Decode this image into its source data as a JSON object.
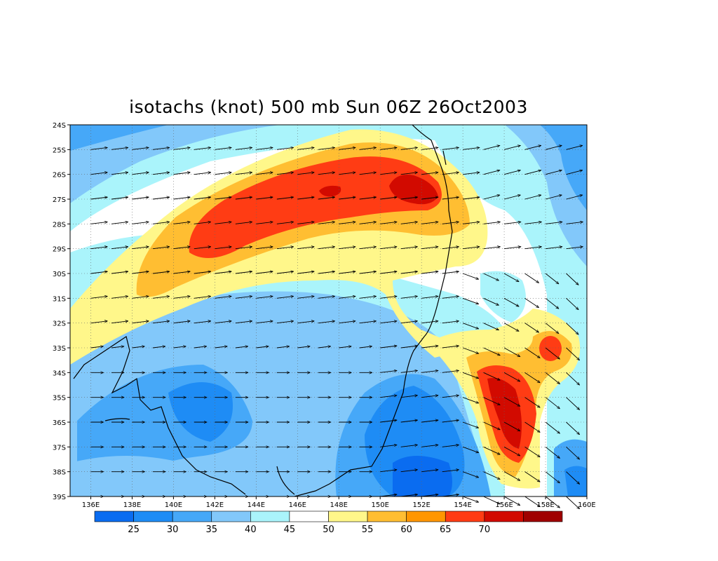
{
  "title": "isotachs (knot) 500 mb Sun 06Z 26Oct2003",
  "map": {
    "lon_range": [
      135,
      160
    ],
    "lat_range": [
      -39,
      -24
    ],
    "lon_ticks": [
      "136E",
      "138E",
      "140E",
      "142E",
      "144E",
      "146E",
      "148E",
      "150E",
      "152E",
      "154E",
      "156E",
      "158E",
      "160E"
    ],
    "lat_ticks": [
      "24S",
      "25S",
      "26S",
      "27S",
      "28S",
      "29S",
      "30S",
      "31S",
      "32S",
      "33S",
      "34S",
      "35S",
      "36S",
      "37S",
      "38S",
      "39S"
    ],
    "grid": true
  },
  "colorbar": {
    "labels": [
      "25",
      "30",
      "35",
      "40",
      "45",
      "50",
      "55",
      "60",
      "65",
      "70"
    ],
    "colors": [
      "#0a6cf0",
      "#1e8cf5",
      "#46a8f8",
      "#82c8fa",
      "#aaf4fb",
      "#ffffff",
      "#fff78a",
      "#ffbe32",
      "#ff9600",
      "#ff3c14",
      "#d20a00",
      "#a00000"
    ]
  },
  "wind_speed_field": {
    "units": "knot",
    "centers": [
      {
        "lon": 145.5,
        "lat": -27.5,
        "value": 66
      },
      {
        "lon": 151.0,
        "lat": -26.8,
        "value": 68
      },
      {
        "lon": 156.0,
        "lat": -35.8,
        "value": 70
      },
      {
        "lon": 158.3,
        "lat": -33.0,
        "value": 65
      },
      {
        "lon": 144.0,
        "lat": -35.5,
        "value": 27
      },
      {
        "lon": 152.0,
        "lat": -36.5,
        "value": 25
      },
      {
        "lon": 137.5,
        "lat": -24.3,
        "value": 33
      },
      {
        "lon": 155.8,
        "lat": -31.2,
        "value": 45
      }
    ]
  }
}
